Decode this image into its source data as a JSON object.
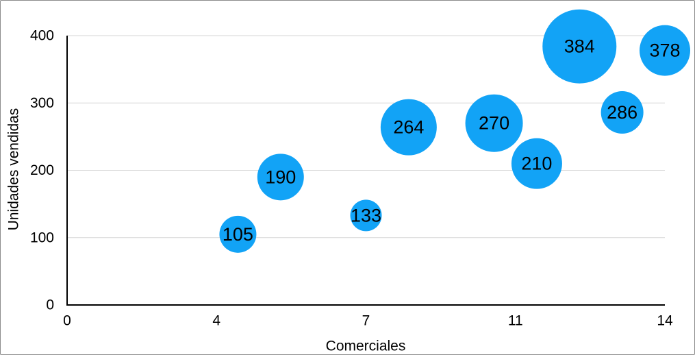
{
  "chart_data": {
    "type": "scatter",
    "subtype": "bubble",
    "title": "",
    "xlabel": "Comerciales",
    "ylabel": "Unidades vendidas",
    "xlim": [
      0,
      14
    ],
    "ylim": [
      0,
      400
    ],
    "x_ticks": {
      "positions": [
        0,
        3.5,
        7,
        10.5,
        14
      ],
      "labels": [
        "0",
        "4",
        "7",
        "11",
        "14"
      ]
    },
    "y_ticks": {
      "positions": [
        0,
        100,
        200,
        300,
        400
      ],
      "labels": [
        "0",
        "100",
        "200",
        "300",
        "400"
      ]
    },
    "grid": "horizontal",
    "legend": "none",
    "points": [
      {
        "x": 4,
        "y": 105,
        "label": "105",
        "radius_px": 27
      },
      {
        "x": 5,
        "y": 190,
        "label": "190",
        "radius_px": 34
      },
      {
        "x": 7,
        "y": 133,
        "label": "133",
        "radius_px": 23
      },
      {
        "x": 8,
        "y": 264,
        "label": "264",
        "radius_px": 41
      },
      {
        "x": 10,
        "y": 270,
        "label": "270",
        "radius_px": 42
      },
      {
        "x": 11,
        "y": 210,
        "label": "210",
        "radius_px": 37
      },
      {
        "x": 12,
        "y": 384,
        "label": "384",
        "radius_px": 54
      },
      {
        "x": 13,
        "y": 286,
        "label": "286",
        "radius_px": 31
      },
      {
        "x": 14,
        "y": 378,
        "label": "378",
        "radius_px": 37
      }
    ],
    "colors": {
      "bubble": "#12a3f6",
      "bubble_label": "#000000",
      "axis": "#000000",
      "tick_label": "#000000",
      "grid": "#d6d6d6",
      "frame_border": "#8c8c8c",
      "background": "#ffffff"
    }
  }
}
